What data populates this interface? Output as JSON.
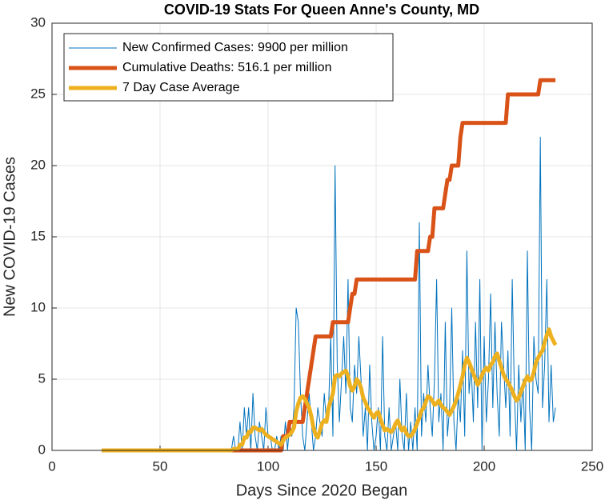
{
  "chart_data": {
    "type": "line",
    "title": "COVID-19 Stats For Queen Anne's County, MD",
    "x_label": "Days Since 2020 Began",
    "y_label": "New COVID-19 Cases",
    "xlim": [
      0,
      250
    ],
    "xticks": [
      0,
      50,
      100,
      150,
      200,
      250
    ],
    "ylim": [
      0,
      30
    ],
    "yticks": [
      0,
      5,
      10,
      15,
      20,
      25,
      30
    ],
    "grid": true,
    "legend": "northwest",
    "x": [
      23,
      24,
      25,
      26,
      27,
      28,
      29,
      30,
      31,
      32,
      33,
      34,
      35,
      36,
      37,
      38,
      39,
      40,
      41,
      42,
      43,
      44,
      45,
      46,
      47,
      48,
      49,
      50,
      51,
      52,
      53,
      54,
      55,
      56,
      57,
      58,
      59,
      60,
      61,
      62,
      63,
      64,
      65,
      66,
      67,
      68,
      69,
      70,
      71,
      72,
      73,
      74,
      75,
      76,
      77,
      78,
      79,
      80,
      81,
      82,
      83,
      84,
      85,
      86,
      87,
      88,
      89,
      90,
      91,
      92,
      93,
      94,
      95,
      96,
      97,
      98,
      99,
      100,
      101,
      102,
      103,
      104,
      105,
      106,
      107,
      108,
      109,
      110,
      111,
      112,
      113,
      114,
      115,
      116,
      117,
      118,
      119,
      120,
      121,
      122,
      123,
      124,
      125,
      126,
      127,
      128,
      129,
      130,
      131,
      132,
      133,
      134,
      135,
      136,
      137,
      138,
      139,
      140,
      141,
      142,
      143,
      144,
      145,
      146,
      147,
      148,
      149,
      150,
      151,
      152,
      153,
      154,
      155,
      156,
      157,
      158,
      159,
      160,
      161,
      162,
      163,
      164,
      165,
      166,
      167,
      168,
      169,
      170,
      171,
      172,
      173,
      174,
      175,
      176,
      177,
      178,
      179,
      180,
      181,
      182,
      183,
      184,
      185,
      186,
      187,
      188,
      189,
      190,
      191,
      192,
      193,
      194,
      195,
      196,
      197,
      198,
      199,
      200,
      201,
      202,
      203,
      204,
      205,
      206,
      207,
      208,
      209,
      210,
      211,
      212,
      213,
      214,
      215,
      216,
      217,
      218,
      219,
      220,
      221,
      222,
      223,
      224,
      225,
      226,
      227,
      228,
      229,
      230,
      231,
      232,
      233
    ],
    "series": [
      {
        "name": "New Confirmed Cases: 9900 per million",
        "color": "#0072BD",
        "width": 1,
        "values": [
          0,
          0,
          0,
          0,
          0,
          0,
          0,
          0,
          0,
          0,
          0,
          0,
          0,
          0,
          0,
          0,
          0,
          0,
          0,
          0,
          0,
          0,
          0,
          0,
          0,
          0,
          0,
          0,
          0,
          0,
          0,
          0,
          0,
          0,
          0,
          0,
          0,
          0,
          0,
          0,
          0,
          0,
          0,
          0,
          0,
          0,
          0,
          0,
          0,
          0,
          0,
          0,
          0,
          0,
          0,
          0,
          0,
          0,
          0,
          0,
          0,
          1,
          0,
          0,
          2,
          0,
          3,
          1,
          3,
          0,
          4,
          1,
          0,
          2,
          1,
          0,
          3,
          1,
          1,
          0,
          0,
          1,
          0,
          1,
          0,
          2,
          0,
          2,
          1,
          3,
          10,
          9,
          4,
          1,
          0,
          2,
          4,
          2,
          0,
          1,
          3,
          2,
          1,
          4,
          2,
          3,
          8,
          1,
          20,
          6,
          2,
          5,
          8,
          4,
          12,
          3,
          2,
          6,
          4,
          8,
          5,
          1,
          3,
          0,
          6,
          2,
          0,
          1,
          3,
          0,
          8,
          1,
          0,
          3,
          0,
          1,
          2,
          0,
          5,
          1,
          0,
          4,
          0,
          2,
          0,
          3,
          0,
          16,
          1,
          4,
          2,
          6,
          3,
          1,
          5,
          12,
          2,
          4,
          0,
          9,
          1,
          3,
          10,
          2,
          0,
          4,
          2,
          7,
          1,
          14,
          4,
          6,
          2,
          9,
          3,
          12,
          0,
          8,
          2,
          5,
          11,
          3,
          9,
          4,
          1,
          9,
          6,
          3,
          7,
          1,
          12,
          4,
          0,
          6,
          2,
          5,
          0,
          14,
          3,
          0,
          8,
          5,
          4,
          22,
          3,
          6,
          12,
          2,
          6,
          2,
          3
        ]
      },
      {
        "name": "Cumulative Deaths: 516.1 per million",
        "color": "#D95319",
        "width": 5,
        "values": [
          0,
          0,
          0,
          0,
          0,
          0,
          0,
          0,
          0,
          0,
          0,
          0,
          0,
          0,
          0,
          0,
          0,
          0,
          0,
          0,
          0,
          0,
          0,
          0,
          0,
          0,
          0,
          0,
          0,
          0,
          0,
          0,
          0,
          0,
          0,
          0,
          0,
          0,
          0,
          0,
          0,
          0,
          0,
          0,
          0,
          0,
          0,
          0,
          0,
          0,
          0,
          0,
          0,
          0,
          0,
          0,
          0,
          0,
          0,
          0,
          0,
          0,
          0,
          0,
          0,
          0,
          0,
          0,
          0,
          0,
          0,
          0,
          0,
          0,
          0,
          0,
          0,
          0,
          0,
          0,
          0,
          0,
          0,
          0,
          1,
          1,
          1,
          2,
          2,
          2,
          2,
          2,
          2,
          2,
          3,
          4,
          5,
          6,
          7,
          8,
          8,
          8,
          8,
          8,
          8,
          8,
          8,
          9,
          9,
          9,
          9,
          9,
          9,
          9,
          9,
          10,
          11,
          11,
          12,
          12,
          12,
          12,
          12,
          12,
          12,
          12,
          12,
          12,
          12,
          12,
          12,
          12,
          12,
          12,
          12,
          12,
          12,
          12,
          12,
          12,
          12,
          12,
          12,
          12,
          12,
          12,
          14,
          14,
          14,
          14,
          14,
          14,
          15,
          15,
          17,
          17,
          17,
          17,
          17,
          18,
          19,
          19,
          20,
          20,
          20,
          20,
          22,
          23,
          23,
          23,
          23,
          23,
          23,
          23,
          23,
          23,
          23,
          23,
          23,
          23,
          23,
          23,
          23,
          23,
          23,
          23,
          23,
          23,
          25,
          25,
          25,
          25,
          25,
          25,
          25,
          25,
          25,
          25,
          25,
          25,
          25,
          25,
          25,
          26,
          26,
          26,
          26,
          26,
          26,
          26,
          26
        ]
      },
      {
        "name": "7 Day Case Average",
        "color": "#EDB120",
        "width": 5,
        "values": [
          0,
          0,
          0,
          0,
          0,
          0,
          0,
          0,
          0,
          0,
          0,
          0,
          0,
          0,
          0,
          0,
          0,
          0,
          0,
          0,
          0,
          0,
          0,
          0,
          0,
          0,
          0,
          0,
          0,
          0,
          0,
          0,
          0,
          0,
          0,
          0,
          0,
          0,
          0,
          0,
          0,
          0,
          0,
          0,
          0,
          0,
          0,
          0,
          0,
          0,
          0,
          0,
          0,
          0,
          0,
          0,
          0,
          0,
          0,
          0,
          0,
          0.1,
          0.1,
          0.1,
          0.4,
          0.4,
          0.9,
          0.9,
          1.3,
          1.3,
          1.6,
          1.6,
          1.5,
          1.4,
          1.5,
          1.3,
          1.1,
          1.0,
          0.9,
          0.8,
          0.7,
          0.6,
          0.5,
          0.4,
          0.7,
          0.9,
          1.0,
          1.1,
          1.3,
          1.6,
          2.7,
          3.3,
          3.7,
          3.8,
          3.6,
          3.3,
          3.0,
          2.4,
          1.6,
          1.1,
          0.9,
          1.4,
          1.9,
          2.1,
          2.0,
          3.0,
          3.5,
          4.0,
          5.2,
          5.3,
          5.2,
          5.4,
          5.5,
          5.6,
          5.2,
          4.5,
          4.2,
          4.5,
          5.0,
          4.8,
          4.4,
          3.7,
          3.4,
          3.0,
          2.8,
          2.5,
          2.3,
          2.6,
          2.7,
          2.2,
          1.8,
          1.4,
          1.5,
          1.4,
          1.3,
          1.5,
          1.9,
          2.1,
          1.7,
          1.4,
          1.6,
          1.2,
          1.0,
          1.0,
          1.2,
          1.5,
          1.9,
          2.3,
          2.8,
          3.0,
          3.4,
          3.8,
          3.7,
          3.5,
          3.2,
          3.3,
          3.5,
          3.2,
          3.0,
          2.9,
          2.7,
          2.5,
          2.8,
          3.1,
          3.5,
          4.0,
          4.6,
          5.2,
          6.0,
          6.5,
          6.2,
          5.8,
          5.4,
          5.0,
          4.6,
          4.9,
          5.3,
          5.6,
          5.8,
          5.6,
          6.0,
          6.2,
          6.6,
          6.8,
          6.3,
          5.8,
          5.3,
          5.0,
          4.8,
          4.5,
          4.2,
          3.8,
          3.5,
          3.7,
          4.1,
          4.5,
          4.9,
          5.2,
          4.9,
          5.0,
          5.5,
          6.2,
          6.5,
          6.8,
          7.0,
          7.6,
          8.1,
          8.5,
          8.0,
          7.7,
          7.4
        ]
      }
    ]
  }
}
